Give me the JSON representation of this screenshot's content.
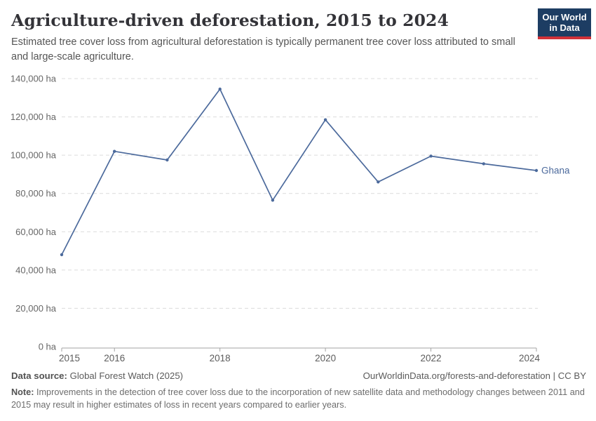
{
  "header": {
    "title": "Agriculture-driven deforestation, 2015 to 2024",
    "subtitle": "Estimated tree cover loss from agricultural deforestation is typically permanent tree cover loss attributed to small and large-scale agriculture."
  },
  "logo": {
    "line1": "Our World",
    "line2": "in Data",
    "bg_color": "#1d3d63",
    "accent_color": "#d13239"
  },
  "chart_data": {
    "type": "line",
    "title": "Agriculture-driven deforestation, 2015 to 2024",
    "unit": "ha",
    "x": [
      2015,
      2016,
      2017,
      2018,
      2019,
      2020,
      2021,
      2022,
      2023,
      2024
    ],
    "series": [
      {
        "name": "Ghana",
        "color": "#4c6a9c",
        "values": [
          48000,
          102000,
          97500,
          134500,
          76500,
          118500,
          86000,
          99500,
          95500,
          92000
        ]
      }
    ],
    "ylim": [
      0,
      140000
    ],
    "y_ticks": [
      0,
      20000,
      40000,
      60000,
      80000,
      100000,
      120000,
      140000
    ],
    "y_tick_labels": [
      "0 ha",
      "20,000 ha",
      "40,000 ha",
      "60,000 ha",
      "80,000 ha",
      "100,000 ha",
      "120,000 ha",
      "140,000 ha"
    ],
    "x_ticks": [
      2015,
      2016,
      2018,
      2020,
      2022,
      2024
    ],
    "x_tick_labels": [
      "2015",
      "2016",
      "2018",
      "2020",
      "2022",
      "2024"
    ],
    "grid": "dashed",
    "grid_color": "#dcdcdc",
    "axis_color": "#a3a3a3",
    "legend_position": "end-of-line",
    "end_label": "Ghana"
  },
  "footer": {
    "source_label": "Data source:",
    "source_value": "Global Forest Watch (2025)",
    "citation": "OurWorldinData.org/forests-and-deforestation | CC BY",
    "note_label": "Note:",
    "note_text": "Improvements in the detection of tree cover loss due to the incorporation of new satellite data and methodology changes between 2011 and 2015 may result in higher estimates of loss in recent years compared to earlier years."
  }
}
